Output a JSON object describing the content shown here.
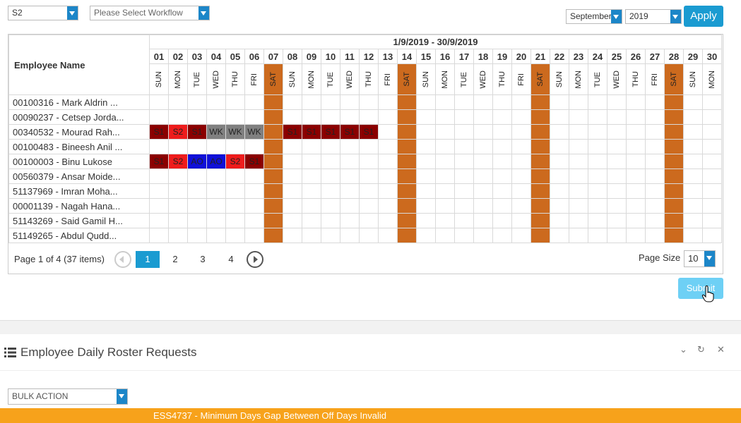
{
  "filters": {
    "shift": "S2",
    "workflow_placeholder": "Please Select  Workflow",
    "month": "September",
    "year": "2019",
    "apply_label": "Apply"
  },
  "grid": {
    "employee_header": "Employee Name",
    "date_range": "1/9/2019 - 30/9/2019",
    "days": [
      {
        "num": "01",
        "dow": "SUN"
      },
      {
        "num": "02",
        "dow": "MON"
      },
      {
        "num": "03",
        "dow": "TUE"
      },
      {
        "num": "04",
        "dow": "WED"
      },
      {
        "num": "05",
        "dow": "THU"
      },
      {
        "num": "06",
        "dow": "FRI"
      },
      {
        "num": "07",
        "dow": "SAT"
      },
      {
        "num": "08",
        "dow": "SUN"
      },
      {
        "num": "09",
        "dow": "MON"
      },
      {
        "num": "10",
        "dow": "TUE"
      },
      {
        "num": "11",
        "dow": "WED"
      },
      {
        "num": "12",
        "dow": "THU"
      },
      {
        "num": "13",
        "dow": "FRI"
      },
      {
        "num": "14",
        "dow": "SAT"
      },
      {
        "num": "15",
        "dow": "SUN"
      },
      {
        "num": "16",
        "dow": "MON"
      },
      {
        "num": "17",
        "dow": "TUE"
      },
      {
        "num": "18",
        "dow": "WED"
      },
      {
        "num": "19",
        "dow": "THU"
      },
      {
        "num": "20",
        "dow": "FRI"
      },
      {
        "num": "21",
        "dow": "SAT"
      },
      {
        "num": "22",
        "dow": "SUN"
      },
      {
        "num": "23",
        "dow": "MON"
      },
      {
        "num": "24",
        "dow": "TUE"
      },
      {
        "num": "25",
        "dow": "WED"
      },
      {
        "num": "26",
        "dow": "THU"
      },
      {
        "num": "27",
        "dow": "FRI"
      },
      {
        "num": "28",
        "dow": "SAT"
      },
      {
        "num": "29",
        "dow": "SUN"
      },
      {
        "num": "30",
        "dow": "MON"
      }
    ],
    "employees": [
      {
        "name": "00100316 - Mark Aldrin ...",
        "shifts": [
          "",
          "",
          "",
          "",
          "",
          "",
          "",
          "",
          "",
          "",
          "",
          "",
          "",
          "",
          "",
          "",
          "",
          "",
          "",
          "",
          "",
          "",
          "",
          "",
          "",
          "",
          "",
          "",
          "",
          ""
        ]
      },
      {
        "name": "00090237 - Cetsep Jorda...",
        "shifts": [
          "",
          "",
          "",
          "",
          "",
          "",
          "",
          "",
          "",
          "",
          "",
          "",
          "",
          "",
          "",
          "",
          "",
          "",
          "",
          "",
          "",
          "",
          "",
          "",
          "",
          "",
          "",
          "",
          "",
          ""
        ]
      },
      {
        "name": "00340532 - Mourad Rah...",
        "shifts": [
          "S1",
          "S2",
          "S1",
          "WK",
          "WK",
          "WK",
          "",
          "S1",
          "S1",
          "S1",
          "S1",
          "S1",
          "",
          "",
          "",
          "",
          "",
          "",
          "",
          "",
          "",
          "",
          "",
          "",
          "",
          "",
          "",
          "",
          "",
          ""
        ]
      },
      {
        "name": "00100483 - Bineesh Anil ...",
        "shifts": [
          "",
          "",
          "",
          "",
          "",
          "",
          "",
          "",
          "",
          "",
          "",
          "",
          "",
          "",
          "",
          "",
          "",
          "",
          "",
          "",
          "",
          "",
          "",
          "",
          "",
          "",
          "",
          "",
          "",
          ""
        ]
      },
      {
        "name": "00100003 - Binu Lukose",
        "shifts": [
          "S1",
          "S2",
          "AO",
          "AO",
          "S2",
          "S1",
          "",
          "",
          "",
          "",
          "",
          "",
          "",
          "",
          "",
          "",
          "",
          "",
          "",
          "",
          "",
          "",
          "",
          "",
          "",
          "",
          "",
          "",
          "",
          ""
        ]
      },
      {
        "name": "00560379 - Ansar Moide...",
        "shifts": [
          "",
          "",
          "",
          "",
          "",
          "",
          "",
          "",
          "",
          "",
          "",
          "",
          "",
          "",
          "",
          "",
          "",
          "",
          "",
          "",
          "",
          "",
          "",
          "",
          "",
          "",
          "",
          "",
          "",
          ""
        ]
      },
      {
        "name": "51137969 - Imran Moha...",
        "shifts": [
          "",
          "",
          "",
          "",
          "",
          "",
          "",
          "",
          "",
          "",
          "",
          "",
          "",
          "",
          "",
          "",
          "",
          "",
          "",
          "",
          "",
          "",
          "",
          "",
          "",
          "",
          "",
          "",
          "",
          ""
        ]
      },
      {
        "name": "00001139 - Nagah Hana...",
        "shifts": [
          "",
          "",
          "",
          "",
          "",
          "",
          "",
          "",
          "",
          "",
          "",
          "",
          "",
          "",
          "",
          "",
          "",
          "",
          "",
          "",
          "",
          "",
          "",
          "",
          "",
          "",
          "",
          "",
          "",
          ""
        ]
      },
      {
        "name": "51143269 - Said Gamil H...",
        "shifts": [
          "",
          "",
          "",
          "",
          "",
          "",
          "",
          "",
          "",
          "",
          "",
          "",
          "",
          "",
          "",
          "",
          "",
          "",
          "",
          "",
          "",
          "",
          "",
          "",
          "",
          "",
          "",
          "",
          "",
          ""
        ]
      },
      {
        "name": "51149265 - Abdul Qudd...",
        "shifts": [
          "",
          "",
          "",
          "",
          "",
          "",
          "",
          "",
          "",
          "",
          "",
          "",
          "",
          "",
          "",
          "",
          "",
          "",
          "",
          "",
          "",
          "",
          "",
          "",
          "",
          "",
          "",
          "",
          "",
          ""
        ]
      }
    ]
  },
  "pager": {
    "info": "Page 1 of 4 (37 items)",
    "pages": [
      "1",
      "2",
      "3",
      "4"
    ],
    "page_size_label": "Page Size",
    "page_size": "10"
  },
  "submit_label": "Submit",
  "panel": {
    "title": "Employee Daily Roster Requests",
    "bulk_action": "BULK ACTION"
  },
  "error_message": "ESS4737 - Minimum Days Gap Between Off Days Invalid",
  "colors": {
    "weekend": "#cc6a1e",
    "S1": "#8b0000",
    "S2": "#ee1c1c",
    "AO": "#1010d8",
    "WK": "#808080",
    "accent": "#1a9bd1",
    "error_bar": "#f7a21b"
  }
}
